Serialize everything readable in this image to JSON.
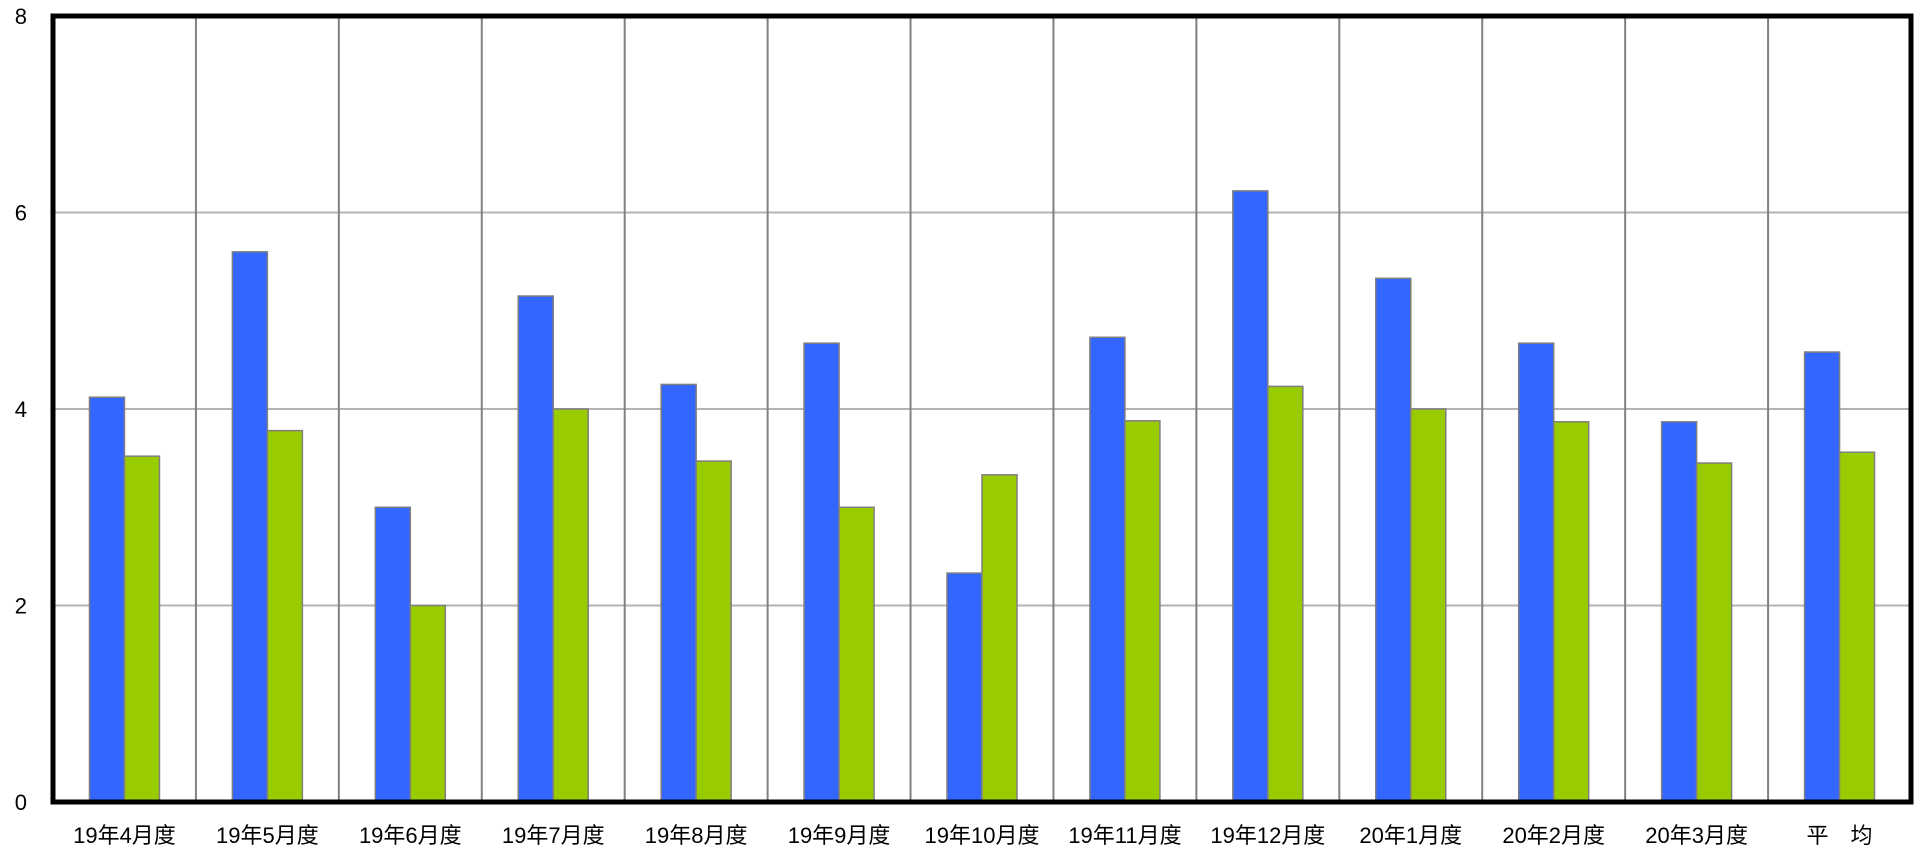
{
  "chart_data": {
    "type": "bar",
    "title": "",
    "xlabel": "",
    "ylabel": "",
    "ylim": [
      0,
      8
    ],
    "yticks": [
      0,
      2,
      4,
      6,
      8
    ],
    "grid": {
      "horizontal": true,
      "vertical": true
    },
    "legend": "none",
    "categories": [
      "19年4月度",
      "19年5月度",
      "19年6月度",
      "19年7月度",
      "19年8月度",
      "19年9月度",
      "19年10月度",
      "19年11月度",
      "19年12月度",
      "20年1月度",
      "20年2月度",
      "20年3月度",
      "平　均"
    ],
    "series": [
      {
        "color": "#3366ff",
        "values": [
          4.12,
          5.6,
          3.0,
          5.15,
          4.25,
          4.67,
          2.33,
          4.73,
          6.22,
          5.33,
          4.67,
          3.87,
          4.58
        ]
      },
      {
        "color": "#99cc00",
        "values": [
          3.52,
          3.78,
          2.0,
          4.0,
          3.47,
          3.0,
          3.33,
          3.88,
          4.23,
          4.0,
          3.87,
          3.45,
          3.56
        ]
      }
    ]
  }
}
